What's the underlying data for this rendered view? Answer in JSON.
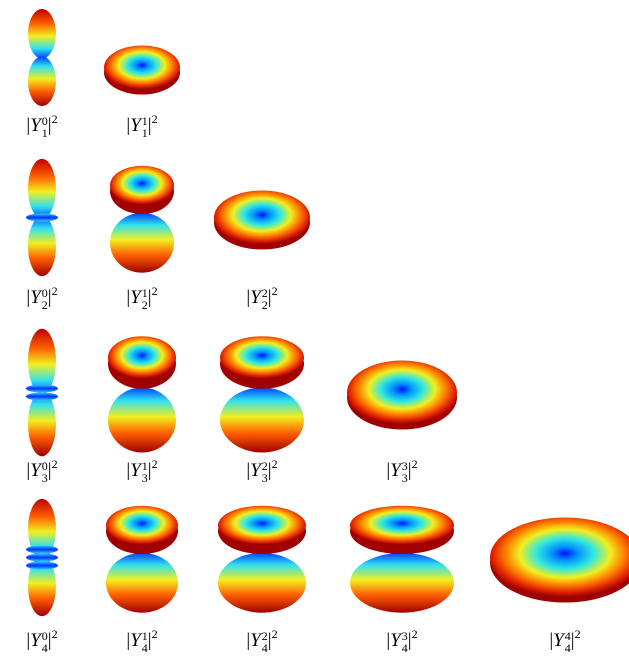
{
  "rows": [
    {
      "items": [
        {
          "open": "|",
          "sym": "Y",
          "m": "0",
          "l": "1",
          "close": "|",
          "power": "2"
        },
        {
          "open": "|",
          "sym": "Y",
          "m": "1",
          "l": "1",
          "close": "|",
          "power": "2"
        }
      ]
    },
    {
      "items": [
        {
          "open": "|",
          "sym": "Y",
          "m": "0",
          "l": "2",
          "close": "|",
          "power": "2"
        },
        {
          "open": "|",
          "sym": "Y",
          "m": "1",
          "l": "2",
          "close": "|",
          "power": "2"
        },
        {
          "open": "|",
          "sym": "Y",
          "m": "2",
          "l": "2",
          "close": "|",
          "power": "2"
        }
      ]
    },
    {
      "items": [
        {
          "open": "|",
          "sym": "Y",
          "m": "0",
          "l": "3",
          "close": "|",
          "power": "2"
        },
        {
          "open": "|",
          "sym": "Y",
          "m": "1",
          "l": "3",
          "close": "|",
          "power": "2"
        },
        {
          "open": "|",
          "sym": "Y",
          "m": "2",
          "l": "3",
          "close": "|",
          "power": "2"
        },
        {
          "open": "|",
          "sym": "Y",
          "m": "3",
          "l": "3",
          "close": "|",
          "power": "2"
        }
      ]
    },
    {
      "items": [
        {
          "open": "|",
          "sym": "Y",
          "m": "0",
          "l": "4",
          "close": "|",
          "power": "2"
        },
        {
          "open": "|",
          "sym": "Y",
          "m": "1",
          "l": "4",
          "close": "|",
          "power": "2"
        },
        {
          "open": "|",
          "sym": "Y",
          "m": "2",
          "l": "4",
          "close": "|",
          "power": "2"
        },
        {
          "open": "|",
          "sym": "Y",
          "m": "3",
          "l": "4",
          "close": "|",
          "power": "2"
        },
        {
          "open": "|",
          "sym": "Y",
          "m": "4",
          "l": "4",
          "close": "|",
          "power": "2"
        }
      ]
    }
  ]
}
